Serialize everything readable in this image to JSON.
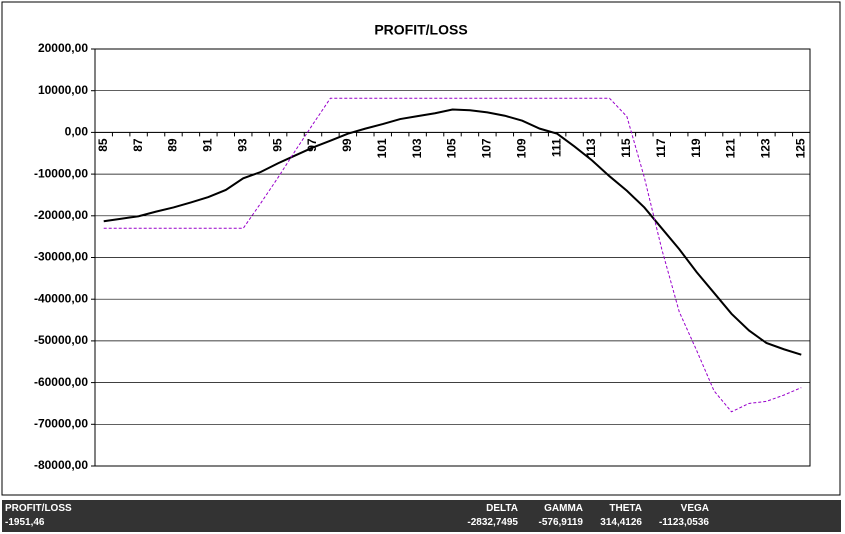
{
  "chart_data": {
    "type": "line",
    "title": "PROFIT/LOSS",
    "categories": [
      "85",
      null,
      "87",
      null,
      "89",
      null,
      "91",
      null,
      "93",
      null,
      "95",
      null,
      "97",
      null,
      "99",
      null,
      "101",
      null,
      "103",
      null,
      "105",
      null,
      "107",
      null,
      "109",
      null,
      "111",
      null,
      "113",
      null,
      "115",
      null,
      "117",
      null,
      "119",
      null,
      "121",
      null,
      "123",
      null,
      "125"
    ],
    "series": [
      {
        "color": "#000000",
        "values": [
          -21300,
          -20700,
          -20100,
          -19000,
          -18000,
          -16800,
          -15500,
          -13800,
          -11000,
          -9500,
          -7400,
          -5500,
          -3600,
          -2000,
          -300,
          900,
          2000,
          3200,
          3900,
          4600,
          5500,
          5300,
          4800,
          4000,
          2800,
          900,
          -300,
          -3400,
          -6700,
          -10500,
          -14000,
          -18000,
          -23000,
          -28000,
          -33500,
          -38500,
          -43500,
          -47500,
          -50500,
          -52000,
          -53300
        ]
      },
      {
        "color": "#9900cc",
        "dashed": true,
        "values": [
          -23000,
          -23000,
          -23000,
          -23000,
          -23000,
          -23000,
          -23000,
          -23000,
          -23000,
          -17000,
          -10800,
          -4300,
          2000,
          8200,
          8200,
          8200,
          8200,
          8200,
          8200,
          8200,
          8200,
          8200,
          8200,
          8200,
          8200,
          8200,
          8200,
          8200,
          8200,
          8200,
          3800,
          -10800,
          -28000,
          -43000,
          -52300,
          -62000,
          -67000,
          -65000,
          -64500,
          -63000,
          -61200
        ]
      }
    ],
    "ylim": [
      -80000,
      20000
    ],
    "yticks": [
      {
        "value": -80000,
        "label": "-80000,00"
      },
      {
        "value": -70000,
        "label": "-70000,00"
      },
      {
        "value": -60000,
        "label": "-60000,00"
      },
      {
        "value": -50000,
        "label": "-50000,00"
      },
      {
        "value": -40000,
        "label": "-40000,00"
      },
      {
        "value": -30000,
        "label": "-30000,00"
      },
      {
        "value": -20000,
        "label": "-20000,00"
      },
      {
        "value": -10000,
        "label": "-10000,00"
      },
      {
        "value": 0,
        "label": "0,00"
      },
      {
        "value": 10000,
        "label": "10000,00"
      },
      {
        "value": 20000,
        "label": "20000,00"
      }
    ],
    "grid": true
  },
  "status_bar": {
    "labels": [
      "PROFIT/LOSS",
      "DELTA",
      "GAMMA",
      "THETA",
      "VEGA"
    ],
    "values": [
      "-1951,46",
      "-2832,7495",
      "-576,9119",
      "314,4126",
      "-1123,0536"
    ]
  }
}
